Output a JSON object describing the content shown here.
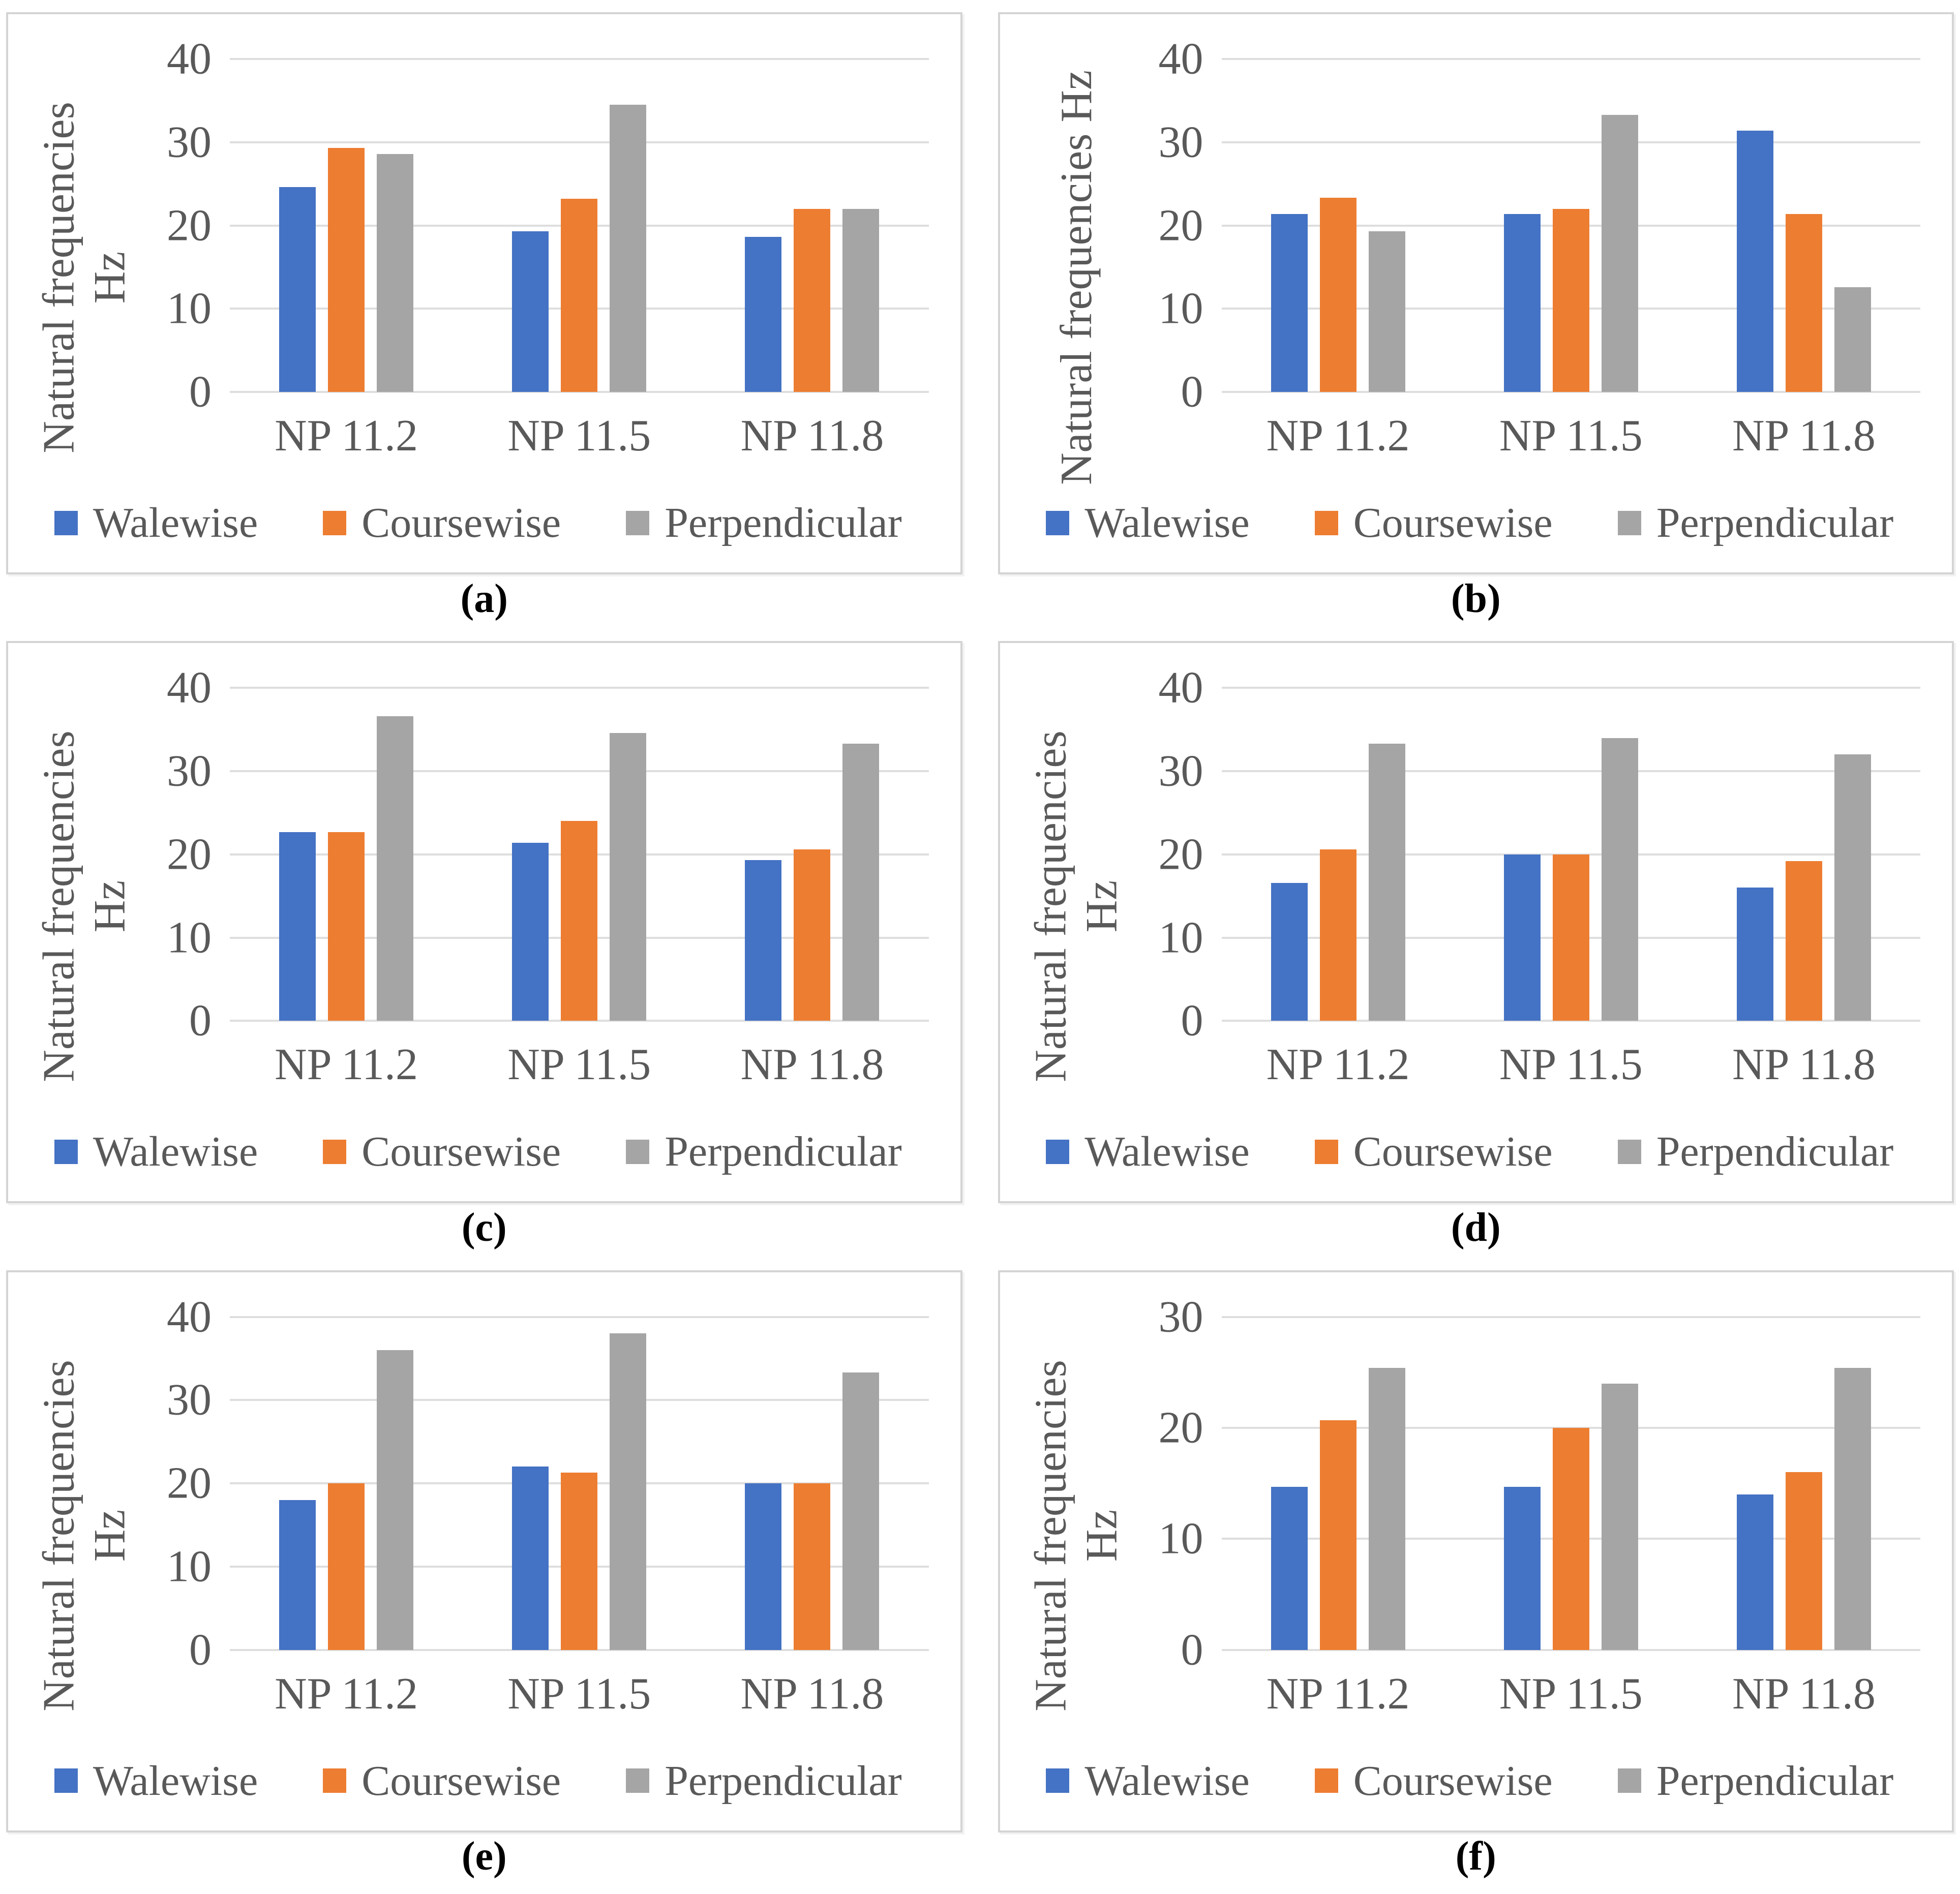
{
  "figure": {
    "background": "#FFFFFF",
    "text_color": "#595959",
    "gridline_color": "#DEDEDE",
    "box_border_color": "#D4D4D4",
    "series_colors": [
      "#4472C4",
      "#ED7D31",
      "#A5A5A5"
    ],
    "legend_labels": [
      "Walewise",
      "Coursewise",
      "Perpendicular"
    ],
    "legend_swatch_icons": [
      "blue-square-icon",
      "orange-square-icon",
      "gray-square-icon"
    ]
  },
  "chart_data": [
    {
      "id": "a",
      "caption": "(a)",
      "type": "bar",
      "ylabel_lines": [
        "Natural frequencies",
        "Hz"
      ],
      "categories": [
        "NP 11.2",
        "NP 11.5",
        "NP 11.8"
      ],
      "yticks": [
        40,
        30,
        20,
        10,
        0
      ],
      "ylim": [
        0,
        40
      ],
      "grid": true,
      "legend_position": "bottom",
      "series": [
        {
          "name": "Walewise",
          "color": "#4472C4",
          "values": [
            24.6,
            19.3,
            18.6
          ]
        },
        {
          "name": "Coursewise",
          "color": "#ED7D31",
          "values": [
            29.3,
            23.2,
            22.0
          ]
        },
        {
          "name": "Perpendicular",
          "color": "#A5A5A5",
          "values": [
            28.6,
            34.5,
            22.0
          ]
        }
      ]
    },
    {
      "id": "b",
      "caption": "(b)",
      "type": "bar",
      "ylabel_lines": [
        "Natural frequencies Hz"
      ],
      "categories": [
        "NP 11.2",
        "NP 11.5",
        "NP 11.8"
      ],
      "yticks": [
        40,
        30,
        20,
        10,
        0
      ],
      "ylim": [
        0,
        40
      ],
      "grid": true,
      "legend_position": "bottom",
      "series": [
        {
          "name": "Walewise",
          "color": "#4472C4",
          "values": [
            21.4,
            21.4,
            31.4
          ]
        },
        {
          "name": "Coursewise",
          "color": "#ED7D31",
          "values": [
            23.3,
            22.0,
            21.4
          ]
        },
        {
          "name": "Perpendicular",
          "color": "#A5A5A5",
          "values": [
            19.3,
            33.3,
            12.6
          ]
        }
      ]
    },
    {
      "id": "c",
      "caption": "(c)",
      "type": "bar",
      "ylabel_lines": [
        "Natural frequencies",
        "Hz"
      ],
      "categories": [
        "NP 11.2",
        "NP 11.5",
        "NP 11.8"
      ],
      "yticks": [
        40,
        30,
        20,
        10,
        0
      ],
      "ylim": [
        0,
        40
      ],
      "grid": true,
      "legend_position": "bottom",
      "series": [
        {
          "name": "Walewise",
          "color": "#4472C4",
          "values": [
            22.7,
            21.4,
            19.3
          ]
        },
        {
          "name": "Coursewise",
          "color": "#ED7D31",
          "values": [
            22.7,
            24.0,
            20.6
          ]
        },
        {
          "name": "Perpendicular",
          "color": "#A5A5A5",
          "values": [
            36.6,
            34.6,
            33.3
          ]
        }
      ]
    },
    {
      "id": "d",
      "caption": "(d)",
      "type": "bar",
      "ylabel_lines": [
        "Natural frequencies",
        "Hz"
      ],
      "categories": [
        "NP 11.2",
        "NP 11.5",
        "NP 11.8"
      ],
      "yticks": [
        40,
        30,
        20,
        10,
        0
      ],
      "ylim": [
        0,
        40
      ],
      "grid": true,
      "legend_position": "bottom",
      "series": [
        {
          "name": "Walewise",
          "color": "#4472C4",
          "values": [
            16.6,
            20.0,
            16.0
          ]
        },
        {
          "name": "Coursewise",
          "color": "#ED7D31",
          "values": [
            20.6,
            20.0,
            19.2
          ]
        },
        {
          "name": "Perpendicular",
          "color": "#A5A5A5",
          "values": [
            33.3,
            34.0,
            32.0
          ]
        }
      ]
    },
    {
      "id": "e",
      "caption": "(e)",
      "type": "bar",
      "ylabel_lines": [
        "Natural frequencies",
        "Hz"
      ],
      "categories": [
        "NP 11.2",
        "NP 11.5",
        "NP 11.8"
      ],
      "yticks": [
        40,
        30,
        20,
        10,
        0
      ],
      "ylim": [
        0,
        40
      ],
      "grid": true,
      "legend_position": "bottom",
      "series": [
        {
          "name": "Walewise",
          "color": "#4472C4",
          "values": [
            18.0,
            22.0,
            20.0
          ]
        },
        {
          "name": "Coursewise",
          "color": "#ED7D31",
          "values": [
            20.0,
            21.3,
            20.0
          ]
        },
        {
          "name": "Perpendicular",
          "color": "#A5A5A5",
          "values": [
            36.0,
            38.0,
            33.3
          ]
        }
      ]
    },
    {
      "id": "f",
      "caption": "(f)",
      "type": "bar",
      "ylabel_lines": [
        "Natural frequencies",
        "Hz"
      ],
      "categories": [
        "NP 11.2",
        "NP 11.5",
        "NP 11.8"
      ],
      "yticks": [
        30,
        20,
        10,
        0
      ],
      "ylim": [
        0,
        30
      ],
      "grid": true,
      "legend_position": "bottom",
      "series": [
        {
          "name": "Walewise",
          "color": "#4472C4",
          "values": [
            14.7,
            14.7,
            14.0
          ]
        },
        {
          "name": "Coursewise",
          "color": "#ED7D31",
          "values": [
            20.7,
            20.0,
            16.0
          ]
        },
        {
          "name": "Perpendicular",
          "color": "#A5A5A5",
          "values": [
            25.4,
            24.0,
            25.4
          ]
        }
      ]
    }
  ]
}
